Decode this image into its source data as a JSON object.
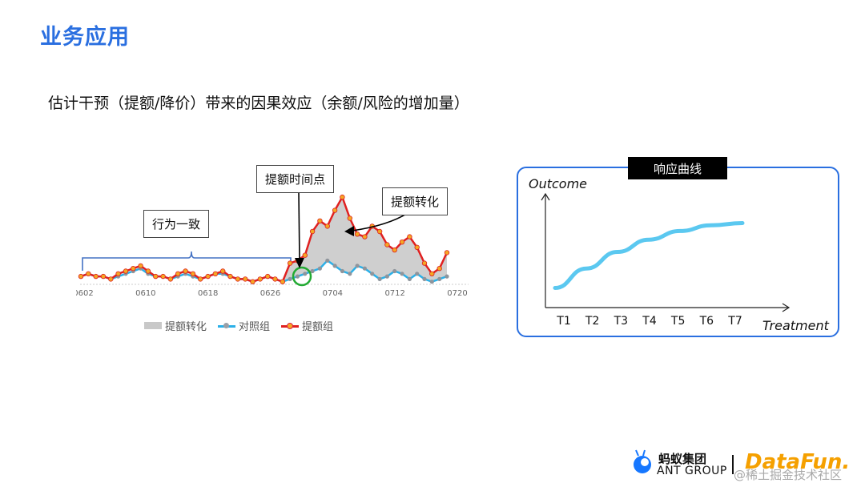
{
  "page": {
    "title": "业务应用",
    "subtitle": "估计干预（提额/降价）带来的因果效应（余额/风险的增加量）"
  },
  "callouts": {
    "consistent": "行为一致",
    "credit_time": "提额时间点",
    "conversion": "提额转化"
  },
  "chart_data": [
    {
      "type": "line",
      "title": "",
      "x_tick_labels": [
        "0602",
        "0610",
        "0618",
        "0626",
        "0704",
        "0712",
        "0720"
      ],
      "legend": [
        "提额转化",
        "对照组",
        "提额组"
      ],
      "legend_position": "bottom",
      "n_points": 50,
      "intervention_index": 27,
      "series": [
        {
          "name": "对照组",
          "color": "#2bb0e8",
          "values": [
            3,
            4,
            3,
            3,
            2,
            3,
            4,
            5,
            6,
            4,
            3,
            3,
            2,
            3,
            4,
            3,
            2,
            3,
            4,
            4,
            3,
            2,
            2,
            1,
            2,
            3,
            2,
            1,
            2,
            3,
            4,
            5,
            6,
            9,
            7,
            5,
            4,
            7,
            6,
            4,
            2,
            3,
            5,
            4,
            2,
            4,
            2,
            1,
            2,
            3
          ]
        },
        {
          "name": "提额组",
          "color": "#e02020",
          "values": [
            3,
            4,
            3,
            3,
            2,
            4,
            5,
            6,
            7,
            5,
            3,
            3,
            2,
            4,
            5,
            4,
            2,
            3,
            4,
            5,
            3,
            2,
            2,
            1,
            2,
            3,
            2,
            1,
            8,
            9,
            11,
            20,
            24,
            22,
            28,
            33,
            25,
            19,
            18,
            22,
            20,
            15,
            13,
            16,
            18,
            14,
            8,
            4,
            6,
            12
          ]
        }
      ]
    },
    {
      "type": "line",
      "title": "响应曲线",
      "xlabel": "Treatment",
      "ylabel": "Outcome",
      "categories": [
        "T1",
        "T2",
        "T3",
        "T4",
        "T5",
        "T6",
        "T7"
      ],
      "series": [
        {
          "color": "#5bc8f0",
          "values": [
            0.05,
            0.32,
            0.55,
            0.72,
            0.84,
            0.92,
            0.95
          ]
        }
      ]
    }
  ],
  "footer": {
    "ant_cn": "蚂蚁集团",
    "ant_en": "ANT GROUP",
    "datafun": "DataFun.",
    "watermark": "@稀土掘金技术社区"
  }
}
